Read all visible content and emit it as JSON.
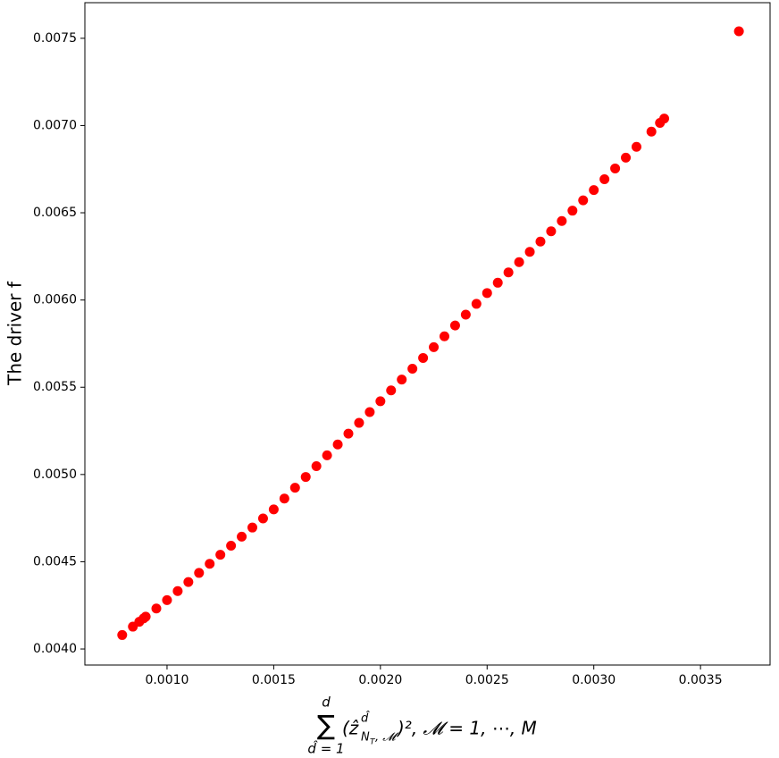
{
  "chart_data": {
    "type": "scatter",
    "xlabel": {
      "sum": "∑",
      "upper": "d",
      "lower": "d̂ = 1",
      "body": "(ẑ",
      "sup": "d̂",
      "sub": "N",
      "subsub": "T",
      "subtail": ", 𝓜",
      "tail": ")², 𝓜 = 1, ⋯, M"
    },
    "ylabel": "The driver f",
    "color": "#ff0000",
    "x": [
      0.00079,
      0.00084,
      0.00087,
      0.00089,
      0.0009,
      0.00095,
      0.001,
      0.00105,
      0.0011,
      0.00115,
      0.0012,
      0.00125,
      0.0013,
      0.00135,
      0.0014,
      0.00145,
      0.0015,
      0.00155,
      0.0016,
      0.00165,
      0.0017,
      0.00175,
      0.0018,
      0.00185,
      0.0019,
      0.00195,
      0.002,
      0.00205,
      0.0021,
      0.00215,
      0.0022,
      0.00225,
      0.0023,
      0.00235,
      0.0024,
      0.00245,
      0.0025,
      0.00255,
      0.0026,
      0.00265,
      0.0027,
      0.00275,
      0.0028,
      0.00285,
      0.0029,
      0.00295,
      0.003,
      0.00305,
      0.0031,
      0.00315,
      0.0032,
      0.00327,
      0.00331,
      0.00333,
      0.00368
    ],
    "values": [
      0.00408,
      0.004128,
      0.004156,
      0.004175,
      0.004185,
      0.004232,
      0.00428,
      0.004332,
      0.004384,
      0.004436,
      0.004488,
      0.00454,
      0.004592,
      0.004644,
      0.004696,
      0.004748,
      0.0048,
      0.004862,
      0.004924,
      0.004986,
      0.005048,
      0.00511,
      0.005172,
      0.005234,
      0.005296,
      0.005358,
      0.00542,
      0.005482,
      0.005544,
      0.005606,
      0.005668,
      0.00573,
      0.005792,
      0.005854,
      0.005916,
      0.005978,
      0.00604,
      0.006099,
      0.006158,
      0.006217,
      0.006276,
      0.006335,
      0.006394,
      0.006453,
      0.006512,
      0.006571,
      0.00663,
      0.006692,
      0.006754,
      0.006816,
      0.006878,
      0.006965,
      0.007015,
      0.00704,
      0.00754
    ],
    "xlim": [
      0.000615,
      0.003826
    ],
    "ylim": [
      0.003908,
      0.007704
    ],
    "xticks": [
      {
        "value": 0.001,
        "label": "0.0010"
      },
      {
        "value": 0.0015,
        "label": "0.0015"
      },
      {
        "value": 0.002,
        "label": "0.0020"
      },
      {
        "value": 0.0025,
        "label": "0.0025"
      },
      {
        "value": 0.003,
        "label": "0.0030"
      },
      {
        "value": 0.0035,
        "label": "0.0035"
      }
    ],
    "yticks": [
      {
        "value": 0.004,
        "label": "0.0040"
      },
      {
        "value": 0.0045,
        "label": "0.0045"
      },
      {
        "value": 0.005,
        "label": "0.0050"
      },
      {
        "value": 0.0055,
        "label": "0.0055"
      },
      {
        "value": 0.006,
        "label": "0.0060"
      },
      {
        "value": 0.0065,
        "label": "0.0065"
      },
      {
        "value": 0.007,
        "label": "0.0070"
      },
      {
        "value": 0.0075,
        "label": "0.0075"
      }
    ]
  }
}
